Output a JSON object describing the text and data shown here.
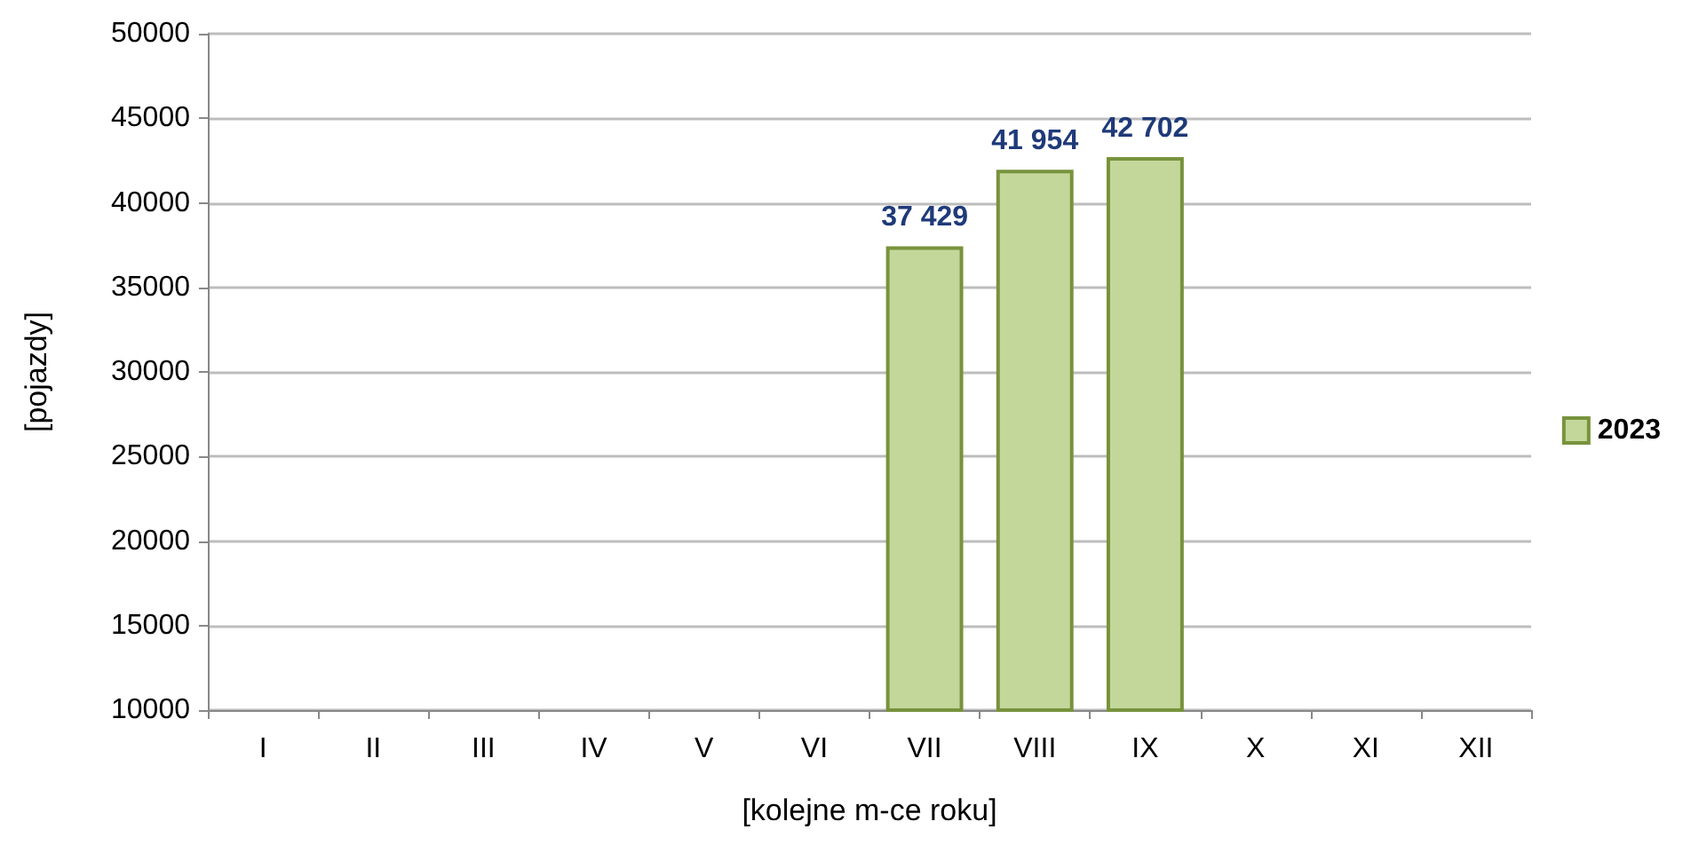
{
  "chart_data": {
    "type": "bar",
    "xlabel": "[kolejne m-ce roku]",
    "ylabel": "[pojazdy]",
    "categories": [
      "I",
      "II",
      "III",
      "IV",
      "V",
      "VI",
      "VII",
      "VIII",
      "IX",
      "X",
      "XI",
      "XII"
    ],
    "series": [
      {
        "name": "2023",
        "color": "#c4d79b",
        "values": [
          null,
          null,
          null,
          null,
          null,
          null,
          37429,
          41954,
          42702,
          null,
          null,
          null
        ],
        "value_labels": [
          null,
          null,
          null,
          null,
          null,
          null,
          "37 429",
          "41 954",
          "42 702",
          null,
          null,
          null
        ]
      }
    ],
    "ylim": [
      10000,
      50000
    ],
    "yticks": [
      10000,
      15000,
      20000,
      25000,
      30000,
      35000,
      40000,
      45000,
      50000
    ],
    "grid": "y",
    "legend": "right"
  }
}
